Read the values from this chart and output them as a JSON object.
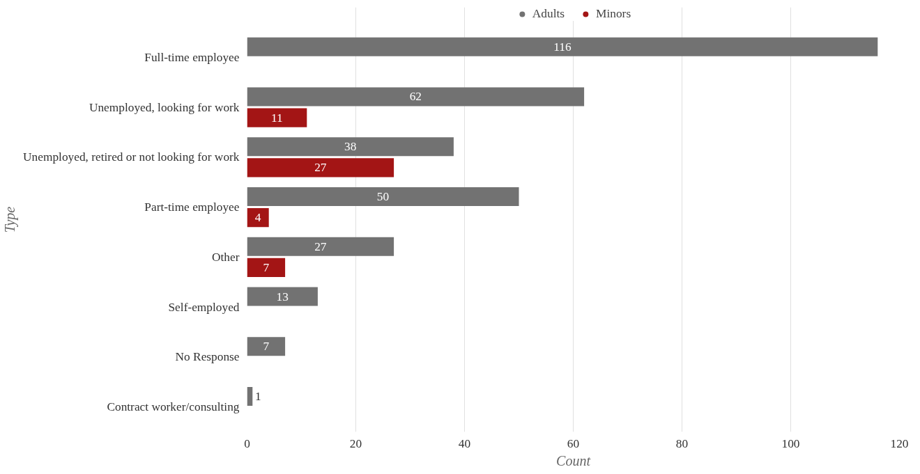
{
  "chart_data": {
    "type": "bar",
    "orientation": "horizontal",
    "xlabel": "Count",
    "ylabel": "Type",
    "categories": [
      "Full-time employee",
      "Unemployed, looking for work",
      "Unemployed, retired or not looking for work",
      "Part-time employee",
      "Other",
      "Self-employed",
      "No Response",
      "Contract worker/consulting"
    ],
    "series": [
      {
        "name": "Adults",
        "color": "#727272",
        "values": [
          116,
          62,
          38,
          50,
          27,
          13,
          7,
          1
        ]
      },
      {
        "name": "Minors",
        "color": "#a31515",
        "values": [
          null,
          11,
          27,
          4,
          7,
          null,
          null,
          null
        ]
      }
    ],
    "xlim": [
      0,
      120
    ],
    "xticks": [
      0,
      20,
      40,
      60,
      80,
      100,
      120
    ],
    "grid": "x",
    "legend": "top",
    "marker": "circle",
    "data_labels": true
  }
}
